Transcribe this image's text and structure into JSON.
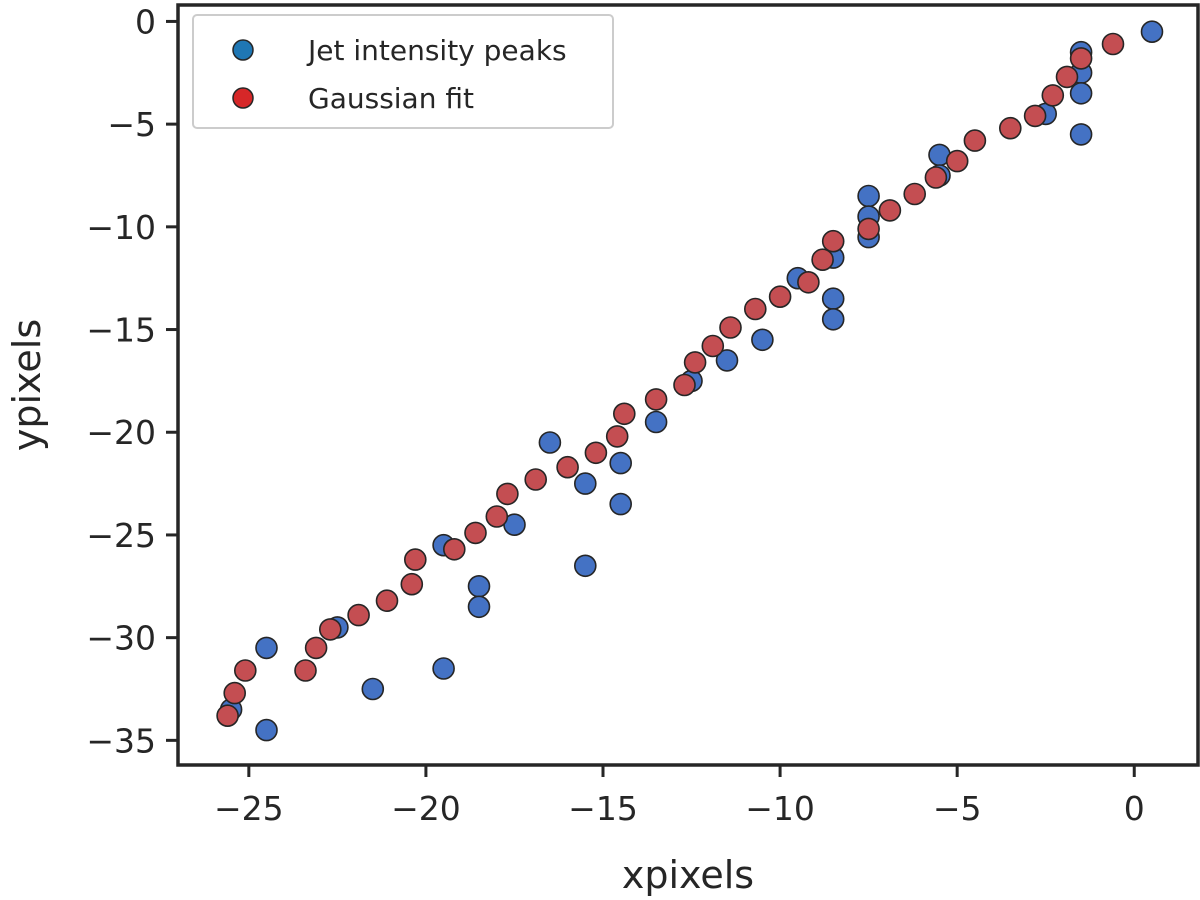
{
  "chart_data": {
    "type": "scatter",
    "title": "",
    "xlabel": "xpixels",
    "ylabel": "ypixels",
    "xlim": [
      -27,
      1.8
    ],
    "ylim": [
      -36.2,
      0.8
    ],
    "xticks": [
      -25,
      -20,
      -15,
      -10,
      -5,
      0
    ],
    "yticks": [
      0,
      -5,
      -10,
      -15,
      -20,
      -25,
      -30,
      -35
    ],
    "xtick_labels": [
      "−25",
      "−20",
      "−15",
      "−10",
      "−5",
      "0"
    ],
    "ytick_labels": [
      "0",
      "−5",
      "−10",
      "−15",
      "−20",
      "−25",
      "−30",
      "−35"
    ],
    "grid": false,
    "legend_position": "top-left",
    "series": [
      {
        "name": "Jet intensity peaks",
        "color": "#4472C4",
        "legend_color": "#1F77B4",
        "points": [
          [
            0.5,
            -0.5
          ],
          [
            -1.5,
            -1.5
          ],
          [
            -1.5,
            -2.5
          ],
          [
            -1.5,
            -3.5
          ],
          [
            -1.5,
            -5.5
          ],
          [
            -2.5,
            -4.5
          ],
          [
            -5.5,
            -6.5
          ],
          [
            -5.5,
            -7.5
          ],
          [
            -7.5,
            -8.5
          ],
          [
            -7.5,
            -9.5
          ],
          [
            -7.5,
            -10.5
          ],
          [
            -8.5,
            -11.5
          ],
          [
            -8.5,
            -13.5
          ],
          [
            -8.5,
            -14.5
          ],
          [
            -9.5,
            -12.5
          ],
          [
            -10.5,
            -15.5
          ],
          [
            -11.5,
            -16.5
          ],
          [
            -12.5,
            -17.5
          ],
          [
            -13.5,
            -19.5
          ],
          [
            -14.5,
            -21.5
          ],
          [
            -14.5,
            -23.5
          ],
          [
            -15.5,
            -22.5
          ],
          [
            -15.5,
            -26.5
          ],
          [
            -16.5,
            -20.5
          ],
          [
            -17.5,
            -24.5
          ],
          [
            -18.5,
            -27.5
          ],
          [
            -18.5,
            -28.5
          ],
          [
            -19.5,
            -25.5
          ],
          [
            -19.5,
            -31.5
          ],
          [
            -21.5,
            -32.5
          ],
          [
            -22.5,
            -29.5
          ],
          [
            -24.5,
            -30.5
          ],
          [
            -24.5,
            -34.5
          ],
          [
            -25.5,
            -33.5
          ]
        ]
      },
      {
        "name": "Gaussian fit",
        "color": "#C44E52",
        "legend_color": "#D62728",
        "points": [
          [
            -0.6,
            -1.1
          ],
          [
            -1.5,
            -1.8
          ],
          [
            -1.9,
            -2.7
          ],
          [
            -2.3,
            -3.6
          ],
          [
            -2.8,
            -4.6
          ],
          [
            -3.5,
            -5.2
          ],
          [
            -4.5,
            -5.8
          ],
          [
            -5.0,
            -6.8
          ],
          [
            -5.6,
            -7.6
          ],
          [
            -6.2,
            -8.4
          ],
          [
            -6.9,
            -9.2
          ],
          [
            -7.5,
            -10.1
          ],
          [
            -8.5,
            -10.7
          ],
          [
            -8.8,
            -11.6
          ],
          [
            -9.2,
            -12.7
          ],
          [
            -10.0,
            -13.4
          ],
          [
            -10.7,
            -14.0
          ],
          [
            -11.4,
            -14.9
          ],
          [
            -11.9,
            -15.8
          ],
          [
            -12.4,
            -16.6
          ],
          [
            -12.7,
            -17.7
          ],
          [
            -13.5,
            -18.4
          ],
          [
            -14.4,
            -19.1
          ],
          [
            -14.6,
            -20.2
          ],
          [
            -15.2,
            -21.0
          ],
          [
            -16.0,
            -21.7
          ],
          [
            -16.9,
            -22.3
          ],
          [
            -17.7,
            -23.0
          ],
          [
            -18.0,
            -24.1
          ],
          [
            -18.6,
            -24.9
          ],
          [
            -19.2,
            -25.7
          ],
          [
            -20.3,
            -26.2
          ],
          [
            -20.4,
            -27.4
          ],
          [
            -21.1,
            -28.2
          ],
          [
            -21.9,
            -28.9
          ],
          [
            -22.7,
            -29.6
          ],
          [
            -23.1,
            -30.5
          ],
          [
            -23.4,
            -31.6
          ],
          [
            -25.1,
            -31.6
          ],
          [
            -25.4,
            -32.7
          ],
          [
            -25.6,
            -33.8
          ]
        ]
      }
    ]
  }
}
